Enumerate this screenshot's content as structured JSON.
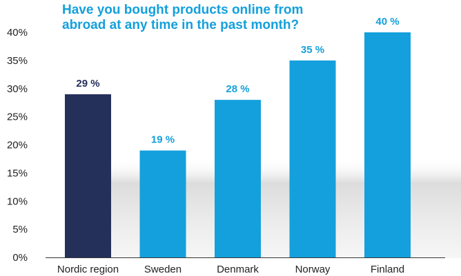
{
  "chart_data": {
    "type": "bar",
    "title": "Have you bought products online from abroad at any time in the past month?",
    "title_lines": [
      "Have you bought products online from",
      "abroad at any time in the past month?"
    ],
    "categories": [
      "Nordic region",
      "Sweden",
      "Denmark",
      "Norway",
      "Finland"
    ],
    "values": [
      29,
      19,
      28,
      35,
      40
    ],
    "data_labels": [
      "29 %",
      "19 %",
      "28 %",
      "35 %",
      "40 %"
    ],
    "bar_colors": [
      "#25305a",
      "#14a0dc",
      "#14a0dc",
      "#14a0dc",
      "#14a0dc"
    ],
    "label_colors": [
      "#25305a",
      "#14a0dc",
      "#14a0dc",
      "#14a0dc",
      "#14a0dc"
    ],
    "yticks": [
      0,
      5,
      10,
      15,
      20,
      25,
      30,
      35,
      40
    ],
    "ytick_labels": [
      "0%",
      "5%",
      "10%",
      "15%",
      "20%",
      "25%",
      "30%",
      "35%",
      "40%"
    ],
    "ylim": [
      0,
      40
    ],
    "xlabel": "",
    "ylabel": "",
    "grid": false,
    "legend": "none",
    "colors": {
      "title": "#14a0dc",
      "axis": "#333333",
      "text": "#222222"
    }
  }
}
